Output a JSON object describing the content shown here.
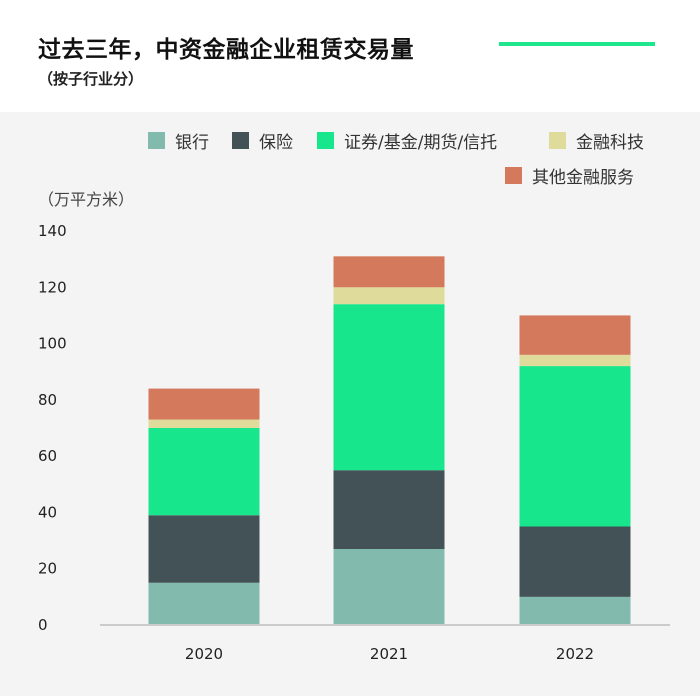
{
  "header": {
    "title": "过去三年，中资金融企业租赁交易量",
    "subtitle": "（按子行业分）"
  },
  "colors": {
    "accent": "#1ee68d",
    "background_panel": "#f3f4f3"
  },
  "chart_data": {
    "type": "bar",
    "stacked": true,
    "categories": [
      "2020",
      "2021",
      "2022"
    ],
    "ylabel": "（万平方米）",
    "ylim": [
      0,
      140
    ],
    "yticks": [
      0,
      20,
      40,
      60,
      80,
      100,
      120,
      140
    ],
    "grid": false,
    "legend_position": "top-right",
    "series": [
      {
        "name": "银行",
        "color": "#82bbae",
        "values": [
          15,
          27,
          10
        ]
      },
      {
        "name": "保险",
        "color": "#435257",
        "values": [
          24,
          28,
          25
        ]
      },
      {
        "name": "证券/基金/期货/信托",
        "color": "#18e68c",
        "values": [
          31,
          59,
          57
        ]
      },
      {
        "name": "金融科技",
        "color": "#dedb9b",
        "values": [
          3,
          6,
          4
        ]
      },
      {
        "name": "其他金融服务",
        "color": "#d4795c",
        "values": [
          11,
          11,
          14
        ]
      }
    ]
  }
}
